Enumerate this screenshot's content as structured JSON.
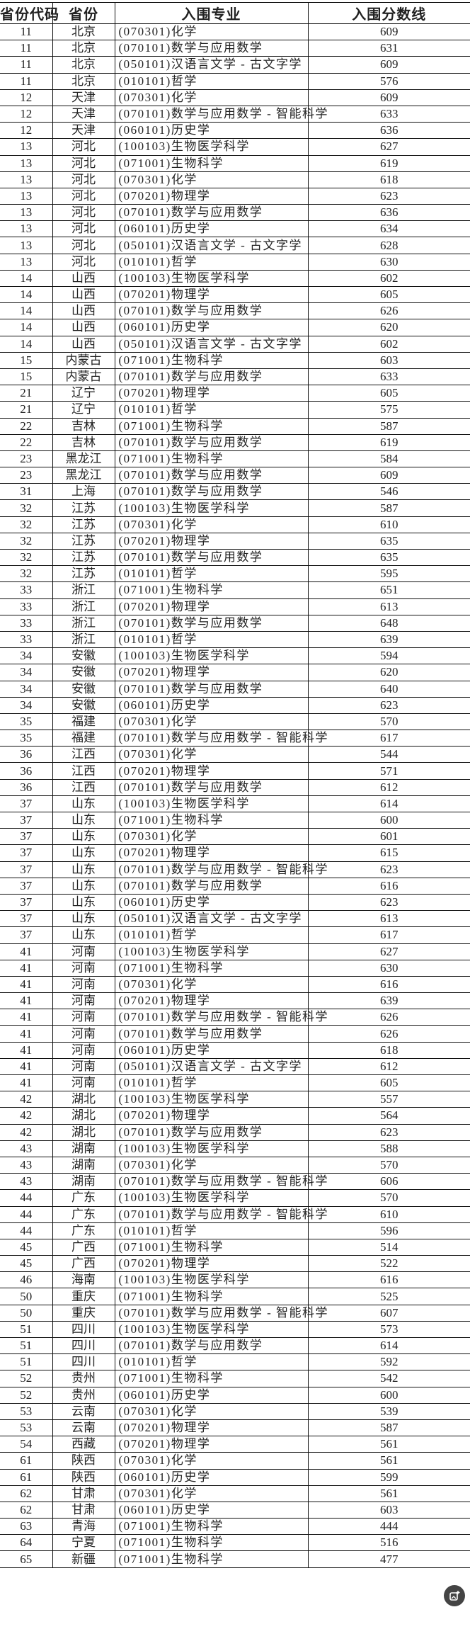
{
  "header": {
    "code": "省份代码",
    "province": "省份",
    "major": "入围专业",
    "score": "入围分数线"
  },
  "rows": [
    [
      "11",
      "北京",
      "(070301)化学",
      "609"
    ],
    [
      "11",
      "北京",
      "(070101)数学与应用数学",
      "631"
    ],
    [
      "11",
      "北京",
      "(050101)汉语言文学 - 古文字学",
      "609"
    ],
    [
      "11",
      "北京",
      "(010101)哲学",
      "576"
    ],
    [
      "12",
      "天津",
      "(070301)化学",
      "609"
    ],
    [
      "12",
      "天津",
      "(070101)数学与应用数学 - 智能科学",
      "633"
    ],
    [
      "12",
      "天津",
      "(060101)历史学",
      "636"
    ],
    [
      "13",
      "河北",
      "(100103)生物医学科学",
      "627"
    ],
    [
      "13",
      "河北",
      "(071001)生物科学",
      "619"
    ],
    [
      "13",
      "河北",
      "(070301)化学",
      "618"
    ],
    [
      "13",
      "河北",
      "(070201)物理学",
      "623"
    ],
    [
      "13",
      "河北",
      "(070101)数学与应用数学",
      "636"
    ],
    [
      "13",
      "河北",
      "(060101)历史学",
      "634"
    ],
    [
      "13",
      "河北",
      "(050101)汉语言文学 - 古文字学",
      "628"
    ],
    [
      "13",
      "河北",
      "(010101)哲学",
      "630"
    ],
    [
      "14",
      "山西",
      "(100103)生物医学科学",
      "602"
    ],
    [
      "14",
      "山西",
      "(070201)物理学",
      "605"
    ],
    [
      "14",
      "山西",
      "(070101)数学与应用数学",
      "626"
    ],
    [
      "14",
      "山西",
      "(060101)历史学",
      "620"
    ],
    [
      "14",
      "山西",
      "(050101)汉语言文学 - 古文字学",
      "602"
    ],
    [
      "15",
      "内蒙古",
      "(071001)生物科学",
      "603"
    ],
    [
      "15",
      "内蒙古",
      "(070101)数学与应用数学",
      "633"
    ],
    [
      "21",
      "辽宁",
      "(070201)物理学",
      "605"
    ],
    [
      "21",
      "辽宁",
      "(010101)哲学",
      "575"
    ],
    [
      "22",
      "吉林",
      "(071001)生物科学",
      "587"
    ],
    [
      "22",
      "吉林",
      "(070101)数学与应用数学",
      "619"
    ],
    [
      "23",
      "黑龙江",
      "(071001)生物科学",
      "584"
    ],
    [
      "23",
      "黑龙江",
      "(070101)数学与应用数学",
      "609"
    ],
    [
      "31",
      "上海",
      "(070101)数学与应用数学",
      "546"
    ],
    [
      "32",
      "江苏",
      "(100103)生物医学科学",
      "587"
    ],
    [
      "32",
      "江苏",
      "(070301)化学",
      "610"
    ],
    [
      "32",
      "江苏",
      "(070201)物理学",
      "635"
    ],
    [
      "32",
      "江苏",
      "(070101)数学与应用数学",
      "635"
    ],
    [
      "32",
      "江苏",
      "(010101)哲学",
      "595"
    ],
    [
      "33",
      "浙江",
      "(071001)生物科学",
      "651"
    ],
    [
      "33",
      "浙江",
      "(070201)物理学",
      "613"
    ],
    [
      "33",
      "浙江",
      "(070101)数学与应用数学",
      "648"
    ],
    [
      "33",
      "浙江",
      "(010101)哲学",
      "639"
    ],
    [
      "34",
      "安徽",
      "(100103)生物医学科学",
      "594"
    ],
    [
      "34",
      "安徽",
      "(070201)物理学",
      "620"
    ],
    [
      "34",
      "安徽",
      "(070101)数学与应用数学",
      "640"
    ],
    [
      "34",
      "安徽",
      "(060101)历史学",
      "623"
    ],
    [
      "35",
      "福建",
      "(070301)化学",
      "570"
    ],
    [
      "35",
      "福建",
      "(070101)数学与应用数学 - 智能科学",
      "617"
    ],
    [
      "36",
      "江西",
      "(070301)化学",
      "544"
    ],
    [
      "36",
      "江西",
      "(070201)物理学",
      "571"
    ],
    [
      "36",
      "江西",
      "(070101)数学与应用数学",
      "612"
    ],
    [
      "37",
      "山东",
      "(100103)生物医学科学",
      "614"
    ],
    [
      "37",
      "山东",
      "(071001)生物科学",
      "600"
    ],
    [
      "37",
      "山东",
      "(070301)化学",
      "601"
    ],
    [
      "37",
      "山东",
      "(070201)物理学",
      "615"
    ],
    [
      "37",
      "山东",
      "(070101)数学与应用数学 - 智能科学",
      "623"
    ],
    [
      "37",
      "山东",
      "(070101)数学与应用数学",
      "616"
    ],
    [
      "37",
      "山东",
      "(060101)历史学",
      "623"
    ],
    [
      "37",
      "山东",
      "(050101)汉语言文学 - 古文字学",
      "613"
    ],
    [
      "37",
      "山东",
      "(010101)哲学",
      "617"
    ],
    [
      "41",
      "河南",
      "(100103)生物医学科学",
      "627"
    ],
    [
      "41",
      "河南",
      "(071001)生物科学",
      "630"
    ],
    [
      "41",
      "河南",
      "(070301)化学",
      "616"
    ],
    [
      "41",
      "河南",
      "(070201)物理学",
      "639"
    ],
    [
      "41",
      "河南",
      "(070101)数学与应用数学 - 智能科学",
      "626"
    ],
    [
      "41",
      "河南",
      "(070101)数学与应用数学",
      "626"
    ],
    [
      "41",
      "河南",
      "(060101)历史学",
      "618"
    ],
    [
      "41",
      "河南",
      "(050101)汉语言文学 - 古文字学",
      "612"
    ],
    [
      "41",
      "河南",
      "(010101)哲学",
      "605"
    ],
    [
      "42",
      "湖北",
      "(100103)生物医学科学",
      "557"
    ],
    [
      "42",
      "湖北",
      "(070201)物理学",
      "564"
    ],
    [
      "42",
      "湖北",
      "(070101)数学与应用数学",
      "623"
    ],
    [
      "43",
      "湖南",
      "(100103)生物医学科学",
      "588"
    ],
    [
      "43",
      "湖南",
      "(070301)化学",
      "570"
    ],
    [
      "43",
      "湖南",
      "(070101)数学与应用数学 - 智能科学",
      "606"
    ],
    [
      "44",
      "广东",
      "(100103)生物医学科学",
      "570"
    ],
    [
      "44",
      "广东",
      "(070101)数学与应用数学 - 智能科学",
      "610"
    ],
    [
      "44",
      "广东",
      "(010101)哲学",
      "596"
    ],
    [
      "45",
      "广西",
      "(071001)生物科学",
      "514"
    ],
    [
      "45",
      "广西",
      "(070201)物理学",
      "522"
    ],
    [
      "46",
      "海南",
      "(100103)生物医学科学",
      "616"
    ],
    [
      "50",
      "重庆",
      "(071001)生物科学",
      "525"
    ],
    [
      "50",
      "重庆",
      "(070101)数学与应用数学 - 智能科学",
      "607"
    ],
    [
      "51",
      "四川",
      "(100103)生物医学科学",
      "573"
    ],
    [
      "51",
      "四川",
      "(070101)数学与应用数学",
      "614"
    ],
    [
      "51",
      "四川",
      "(010101)哲学",
      "592"
    ],
    [
      "52",
      "贵州",
      "(071001)生物科学",
      "542"
    ],
    [
      "52",
      "贵州",
      "(060101)历史学",
      "600"
    ],
    [
      "53",
      "云南",
      "(070301)化学",
      "539"
    ],
    [
      "53",
      "云南",
      "(070201)物理学",
      "587"
    ],
    [
      "54",
      "西藏",
      "(070201)物理学",
      "561"
    ],
    [
      "61",
      "陕西",
      "(070301)化学",
      "561"
    ],
    [
      "61",
      "陕西",
      "(060101)历史学",
      "599"
    ],
    [
      "62",
      "甘肃",
      "(070301)化学",
      "561"
    ],
    [
      "62",
      "甘肃",
      "(060101)历史学",
      "603"
    ],
    [
      "63",
      "青海",
      "(071001)生物科学",
      "444"
    ],
    [
      "64",
      "宁夏",
      "(071001)生物科学",
      "516"
    ],
    [
      "65",
      "新疆",
      "(071001)生物科学",
      "477"
    ]
  ],
  "fab": {
    "icon": "image-plus-icon",
    "color": "#444444"
  }
}
